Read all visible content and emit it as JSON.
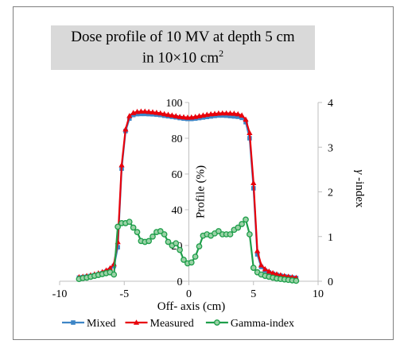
{
  "chart_data": {
    "type": "line",
    "title": "Dose profile of  10 MV at depth 5 cm",
    "subtitle_prefix": "in 10×10 cm",
    "subtitle_superscript": "2",
    "xlabel": "Off- axis (cm)",
    "ylabel": "Profile (%)",
    "y2label_symbol": "γ",
    "y2label_text": " -index",
    "xlim": [
      -10,
      10
    ],
    "ylim": [
      0,
      100
    ],
    "y2lim": [
      0,
      4
    ],
    "x_ticks": [
      "-10",
      "-5",
      "0",
      "5",
      "10"
    ],
    "y_ticks": [
      "0",
      "20",
      "40",
      "60",
      "80",
      "100"
    ],
    "y2_ticks": [
      "0",
      "1",
      "2",
      "3",
      "4"
    ],
    "x": [
      -8.5,
      -8.2,
      -7.9,
      -7.6,
      -7.3,
      -7.0,
      -6.7,
      -6.4,
      -6.1,
      -5.8,
      -5.5,
      -5.2,
      -4.9,
      -4.6,
      -4.3,
      -4.0,
      -3.7,
      -3.4,
      -3.1,
      -2.8,
      -2.5,
      -2.2,
      -1.9,
      -1.6,
      -1.3,
      -1.0,
      -0.7,
      -0.4,
      -0.1,
      0.2,
      0.5,
      0.8,
      1.1,
      1.4,
      1.7,
      2.0,
      2.3,
      2.6,
      2.9,
      3.2,
      3.5,
      3.8,
      4.1,
      4.4,
      4.7,
      5.0,
      5.3,
      5.6,
      5.9,
      6.2,
      6.5,
      6.8,
      7.1,
      7.4,
      7.7,
      8.0,
      8.3
    ],
    "series": [
      {
        "name": "Mixed",
        "axis": "left",
        "color": "#3d85c6",
        "marker": "square",
        "values": [
          2.0,
          2.3,
          2.6,
          3.0,
          3.4,
          3.9,
          4.5,
          5.3,
          6.4,
          8.5,
          19.0,
          63.0,
          84.0,
          91.0,
          93.0,
          93.5,
          93.6,
          93.6,
          93.5,
          93.4,
          93.2,
          93.0,
          92.6,
          92.3,
          92.0,
          91.7,
          91.3,
          91.0,
          90.8,
          90.8,
          91.0,
          91.3,
          91.6,
          91.9,
          92.2,
          92.5,
          92.7,
          92.7,
          92.6,
          92.4,
          92.2,
          92.0,
          91.4,
          89.0,
          80.0,
          52.0,
          15.0,
          8.0,
          6.0,
          4.9,
          4.2,
          3.6,
          3.1,
          2.7,
          2.4,
          2.1,
          1.8
        ]
      },
      {
        "name": "Measured",
        "axis": "left",
        "color": "#e8000b",
        "marker": "triangle",
        "values": [
          2.3,
          2.6,
          3.0,
          3.4,
          3.9,
          4.5,
          5.2,
          6.1,
          7.3,
          9.6,
          22.0,
          65.0,
          85.0,
          92.5,
          94.2,
          94.8,
          95.0,
          95.0,
          94.8,
          94.6,
          94.3,
          94.0,
          93.6,
          93.2,
          92.8,
          92.4,
          92.0,
          91.8,
          91.6,
          91.7,
          92.0,
          92.4,
          92.8,
          93.2,
          93.5,
          93.7,
          93.9,
          94.0,
          94.0,
          93.9,
          93.8,
          93.5,
          92.8,
          90.5,
          83.0,
          55.0,
          17.0,
          9.0,
          6.8,
          5.5,
          4.6,
          3.9,
          3.4,
          3.0,
          2.6,
          2.3,
          2.0
        ]
      },
      {
        "name": "Gamma-index",
        "axis": "right",
        "color": "#1e9e4a",
        "marker": "circle",
        "values": [
          0.05,
          0.07,
          0.08,
          0.1,
          0.12,
          0.14,
          0.16,
          0.18,
          0.2,
          0.15,
          1.22,
          1.3,
          1.3,
          1.33,
          1.2,
          1.1,
          0.9,
          0.88,
          0.9,
          1.0,
          1.1,
          1.12,
          1.05,
          0.88,
          0.8,
          0.85,
          0.7,
          0.48,
          0.4,
          0.42,
          0.55,
          0.78,
          1.02,
          1.05,
          1.02,
          1.07,
          1.12,
          1.05,
          1.05,
          1.05,
          1.15,
          1.2,
          1.28,
          1.38,
          1.05,
          0.3,
          0.2,
          0.15,
          0.12,
          0.1,
          0.08,
          0.06,
          0.05,
          0.04,
          0.03,
          0.02,
          0.01
        ]
      }
    ],
    "grid": false,
    "legend_position": "bottom"
  }
}
